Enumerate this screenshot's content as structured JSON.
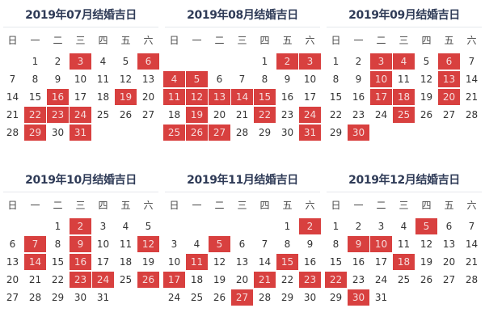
{
  "colors": {
    "highlight": "#d8403f",
    "title": "#2f3b57",
    "text": "#333333"
  },
  "weekdays": [
    "日",
    "一",
    "二",
    "三",
    "四",
    "五",
    "六"
  ],
  "calendars": [
    {
      "title": "2019年07月结婚吉日",
      "weeks": [
        [
          "",
          "1",
          "2",
          "3",
          "4",
          "5",
          "6"
        ],
        [
          "7",
          "8",
          "9",
          "10",
          "11",
          "12",
          "13"
        ],
        [
          "14",
          "15",
          "16",
          "17",
          "18",
          "19",
          "20"
        ],
        [
          "21",
          "22",
          "23",
          "24",
          "25",
          "26",
          "27"
        ],
        [
          "28",
          "29",
          "30",
          "31",
          "",
          "",
          ""
        ]
      ],
      "highlighted": [
        "3",
        "6",
        "16",
        "19",
        "22",
        "23",
        "24",
        "29",
        "31"
      ]
    },
    {
      "title": "2019年08月结婚吉日",
      "weeks": [
        [
          "",
          "",
          "",
          "",
          "1",
          "2",
          "3"
        ],
        [
          "4",
          "5",
          "6",
          "7",
          "8",
          "9",
          "10"
        ],
        [
          "11",
          "12",
          "13",
          "14",
          "15",
          "16",
          "17"
        ],
        [
          "18",
          "19",
          "20",
          "21",
          "22",
          "23",
          "24"
        ],
        [
          "25",
          "26",
          "27",
          "28",
          "29",
          "30",
          "31"
        ]
      ],
      "highlighted": [
        "2",
        "3",
        "4",
        "5",
        "11",
        "12",
        "13",
        "14",
        "15",
        "19",
        "22",
        "24",
        "25",
        "26",
        "27",
        "31"
      ]
    },
    {
      "title": "2019年09月结婚吉日",
      "weeks": [
        [
          "1",
          "2",
          "3",
          "4",
          "5",
          "6",
          "7"
        ],
        [
          "8",
          "9",
          "10",
          "11",
          "12",
          "13",
          "14"
        ],
        [
          "15",
          "16",
          "17",
          "18",
          "19",
          "20",
          "21"
        ],
        [
          "22",
          "23",
          "24",
          "25",
          "26",
          "27",
          "28"
        ],
        [
          "29",
          "30",
          "",
          "",
          "",
          "",
          ""
        ]
      ],
      "highlighted": [
        "3",
        "4",
        "6",
        "10",
        "13",
        "17",
        "18",
        "20",
        "25",
        "30"
      ]
    },
    {
      "title": "2019年10月结婚吉日",
      "weeks": [
        [
          "",
          "",
          "1",
          "2",
          "3",
          "4",
          "5"
        ],
        [
          "6",
          "7",
          "8",
          "9",
          "10",
          "11",
          "12"
        ],
        [
          "13",
          "14",
          "15",
          "16",
          "17",
          "18",
          "19"
        ],
        [
          "20",
          "21",
          "22",
          "23",
          "24",
          "25",
          "26"
        ],
        [
          "27",
          "28",
          "29",
          "30",
          "31",
          "",
          ""
        ]
      ],
      "highlighted": [
        "2",
        "7",
        "9",
        "12",
        "14",
        "16",
        "23",
        "24",
        "26"
      ]
    },
    {
      "title": "2019年11月结婚吉日",
      "weeks": [
        [
          "",
          "",
          "",
          "",
          "",
          "1",
          "2"
        ],
        [
          "3",
          "4",
          "5",
          "6",
          "7",
          "8",
          "9"
        ],
        [
          "10",
          "11",
          "12",
          "13",
          "14",
          "15",
          "16"
        ],
        [
          "17",
          "18",
          "19",
          "20",
          "21",
          "22",
          "23"
        ],
        [
          "24",
          "25",
          "26",
          "27",
          "28",
          "29",
          "30"
        ]
      ],
      "highlighted": [
        "2",
        "5",
        "11",
        "15",
        "17",
        "21",
        "23",
        "27"
      ]
    },
    {
      "title": "2019年12月结婚吉日",
      "weeks": [
        [
          "1",
          "2",
          "3",
          "4",
          "5",
          "6",
          "7"
        ],
        [
          "8",
          "9",
          "10",
          "11",
          "12",
          "13",
          "14"
        ],
        [
          "15",
          "16",
          "17",
          "18",
          "19",
          "20",
          "21"
        ],
        [
          "22",
          "23",
          "24",
          "25",
          "26",
          "27",
          "28"
        ],
        [
          "29",
          "30",
          "31",
          "",
          "",
          "",
          ""
        ]
      ],
      "highlighted": [
        "5",
        "9",
        "10",
        "18",
        "22",
        "30"
      ]
    }
  ]
}
